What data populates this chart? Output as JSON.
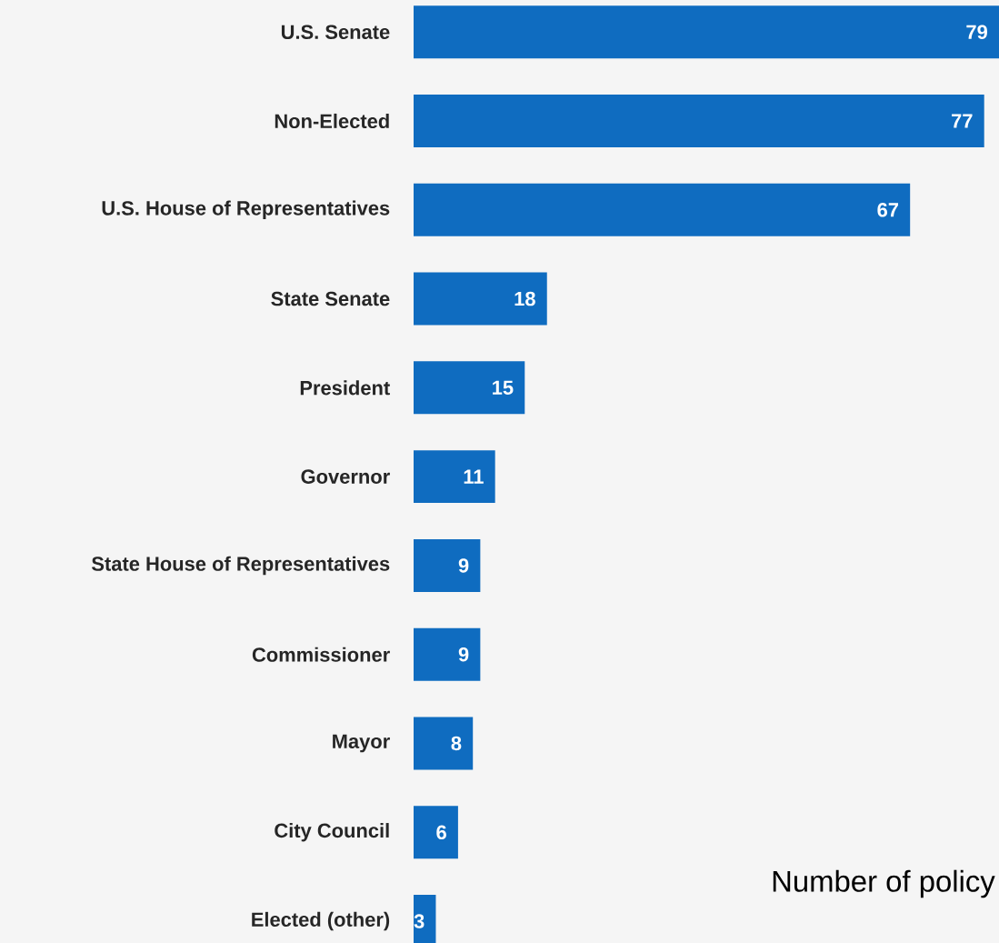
{
  "chart_data": {
    "type": "bar",
    "orientation": "horizontal",
    "categories": [
      "U.S. Senate",
      "Non-Elected",
      "U.S. House of Representatives",
      "State Senate",
      "President",
      "Governor",
      "State House of Representatives",
      "Commissioner",
      "Mayor",
      "City Council",
      "Elected (other)"
    ],
    "values": [
      79,
      77,
      67,
      18,
      15,
      11,
      9,
      9,
      8,
      6,
      3
    ],
    "color": "#0f6cc0",
    "data_labels": true,
    "xlim": [
      0,
      79
    ],
    "annotations": [
      "Number of policy"
    ]
  }
}
